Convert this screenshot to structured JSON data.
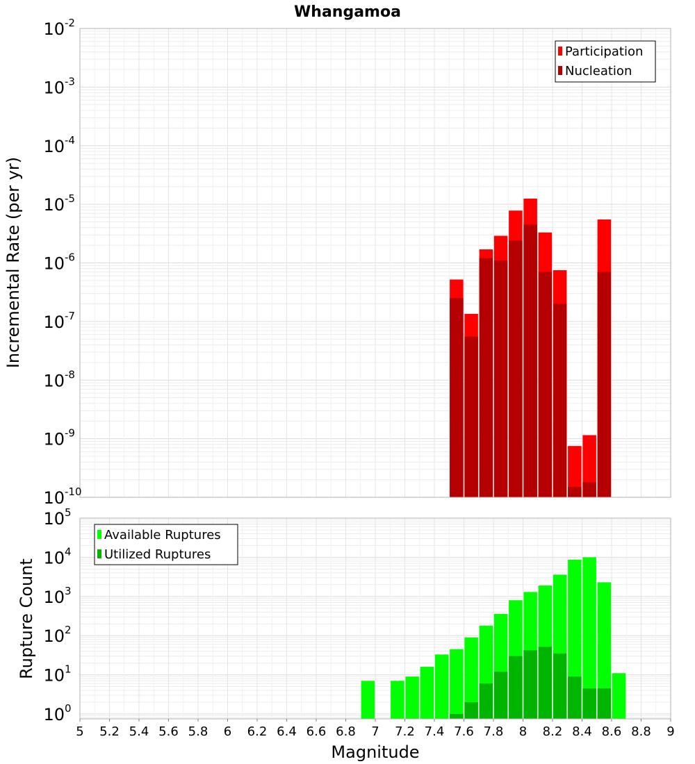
{
  "chart_data": [
    {
      "type": "bar",
      "title": "Whangamoa",
      "xlabel": "",
      "ylabel": "Incremental Rate (per yr)",
      "yscale": "log",
      "ylim": [
        1e-10,
        0.01
      ],
      "xlim": [
        5,
        9
      ],
      "grid": true,
      "legend_position": "top-right",
      "y_ticks": [
        {
          "base": "10",
          "exp": "-10"
        },
        {
          "base": "10",
          "exp": "-9"
        },
        {
          "base": "10",
          "exp": "-8"
        },
        {
          "base": "10",
          "exp": "-7"
        },
        {
          "base": "10",
          "exp": "-6"
        },
        {
          "base": "10",
          "exp": "-5"
        },
        {
          "base": "10",
          "exp": "-4"
        },
        {
          "base": "10",
          "exp": "-3"
        },
        {
          "base": "10",
          "exp": "-2"
        }
      ],
      "x": [
        7.55,
        7.65,
        7.75,
        7.85,
        7.95,
        8.05,
        8.15,
        8.25,
        8.35,
        8.45,
        8.55
      ],
      "series": [
        {
          "name": "Participation",
          "color": "#ff0000",
          "values": [
            5.2e-07,
            1.35e-07,
            1.7e-06,
            2.9e-06,
            7.8e-06,
            1.25e-05,
            3.3e-06,
            7.5e-07,
            7.5e-10,
            1.15e-09,
            5.5e-06
          ]
        },
        {
          "name": "Nucleation",
          "color": "#b40000",
          "values": [
            2.5e-07,
            5.5e-08,
            1.2e-06,
            1.1e-06,
            2.4e-06,
            4.5e-06,
            7e-07,
            2e-07,
            1.5e-10,
            1.8e-10,
            7e-07
          ]
        }
      ]
    },
    {
      "type": "bar",
      "title": "",
      "xlabel": "Magnitude",
      "ylabel": "Rupture Count",
      "yscale": "log",
      "ylim": [
        0.75,
        100000
      ],
      "xlim": [
        5,
        9
      ],
      "grid": true,
      "legend_position": "top-left",
      "x_ticks": [
        "5",
        "5.2",
        "5.4",
        "5.6",
        "5.8",
        "6",
        "6.2",
        "6.4",
        "6.6",
        "6.8",
        "7",
        "7.2",
        "7.4",
        "7.6",
        "7.8",
        "8",
        "8.2",
        "8.4",
        "8.6",
        "8.8",
        "9"
      ],
      "y_ticks": [
        {
          "base": "10",
          "exp": "0"
        },
        {
          "base": "10",
          "exp": "1"
        },
        {
          "base": "10",
          "exp": "2"
        },
        {
          "base": "10",
          "exp": "3"
        },
        {
          "base": "10",
          "exp": "4"
        },
        {
          "base": "10",
          "exp": "5"
        }
      ],
      "x": [
        6.95,
        7.15,
        7.25,
        7.35,
        7.45,
        7.55,
        7.65,
        7.75,
        7.85,
        7.95,
        8.05,
        8.15,
        8.25,
        8.35,
        8.45,
        8.55,
        8.65
      ],
      "series": [
        {
          "name": "Available Ruptures",
          "color": "#00ff00",
          "values": [
            7,
            7,
            9,
            16,
            33,
            45,
            90,
            180,
            360,
            800,
            1300,
            1900,
            3600,
            8700,
            10000,
            2300,
            11
          ]
        },
        {
          "name": "Utilized Ruptures",
          "color": "#00b400",
          "values": [
            0,
            0,
            0,
            0,
            0,
            1,
            2,
            6,
            12,
            30,
            42,
            52,
            35,
            9,
            4.5,
            4.5,
            0
          ]
        }
      ]
    }
  ]
}
